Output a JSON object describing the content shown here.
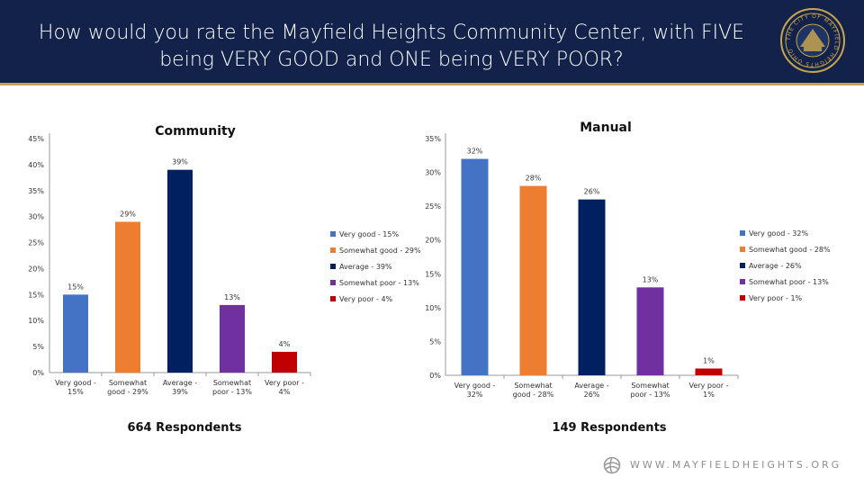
{
  "header": {
    "title_line1": "How would you rate the Mayfield Heights Community Center, with FIVE",
    "title_line2": "being VERY GOOD and ONE being VERY POOR?",
    "seal_text": "THE CITY OF MAYFIELD HEIGHTS OHIO"
  },
  "footer": {
    "url": "WWW.MAYFIELDHEIGHTS.ORG"
  },
  "colors": {
    "header_bg": "#13224a",
    "gold": "#c7a54d",
    "series": [
      "#4472c4",
      "#ed7d31",
      "#002060",
      "#7030a0",
      "#c00000"
    ]
  },
  "chart_data": [
    {
      "type": "bar",
      "title": "Community",
      "respondents": "664 Respondents",
      "categories": [
        "Very good - 15%",
        "Somewhat good - 29%",
        "Average - 39%",
        "Somewhat poor - 13%",
        "Very poor - 4%"
      ],
      "values": [
        15,
        29,
        39,
        13,
        4
      ],
      "value_labels": [
        "15%",
        "29%",
        "39%",
        "13%",
        "4%"
      ],
      "yticks": [
        "0%",
        "5%",
        "10%",
        "15%",
        "20%",
        "25%",
        "30%",
        "35%",
        "40%",
        "45%"
      ],
      "ylim": [
        0,
        45
      ],
      "legend": [
        "Very good - 15%",
        "Somewhat good - 29%",
        "Average - 39%",
        "Somewhat poor - 13%",
        "Very poor - 4%"
      ],
      "legend_position": "right"
    },
    {
      "type": "bar",
      "title": "Manual",
      "respondents": "149 Respondents",
      "categories": [
        "Very good - 32%",
        "Somewhat good - 28%",
        "Average - 26%",
        "Somewhat poor - 13%",
        "Very poor - 1%"
      ],
      "values": [
        32,
        28,
        26,
        13,
        1
      ],
      "value_labels": [
        "32%",
        "28%",
        "26%",
        "13%",
        "1%"
      ],
      "yticks": [
        "0%",
        "5%",
        "10%",
        "15%",
        "20%",
        "25%",
        "30%",
        "35%"
      ],
      "ylim": [
        0,
        35
      ],
      "legend": [
        "Very good - 32%",
        "Somewhat good - 28%",
        "Average - 26%",
        "Somewhat poor - 13%",
        "Very poor - 1%"
      ],
      "legend_position": "right"
    }
  ]
}
